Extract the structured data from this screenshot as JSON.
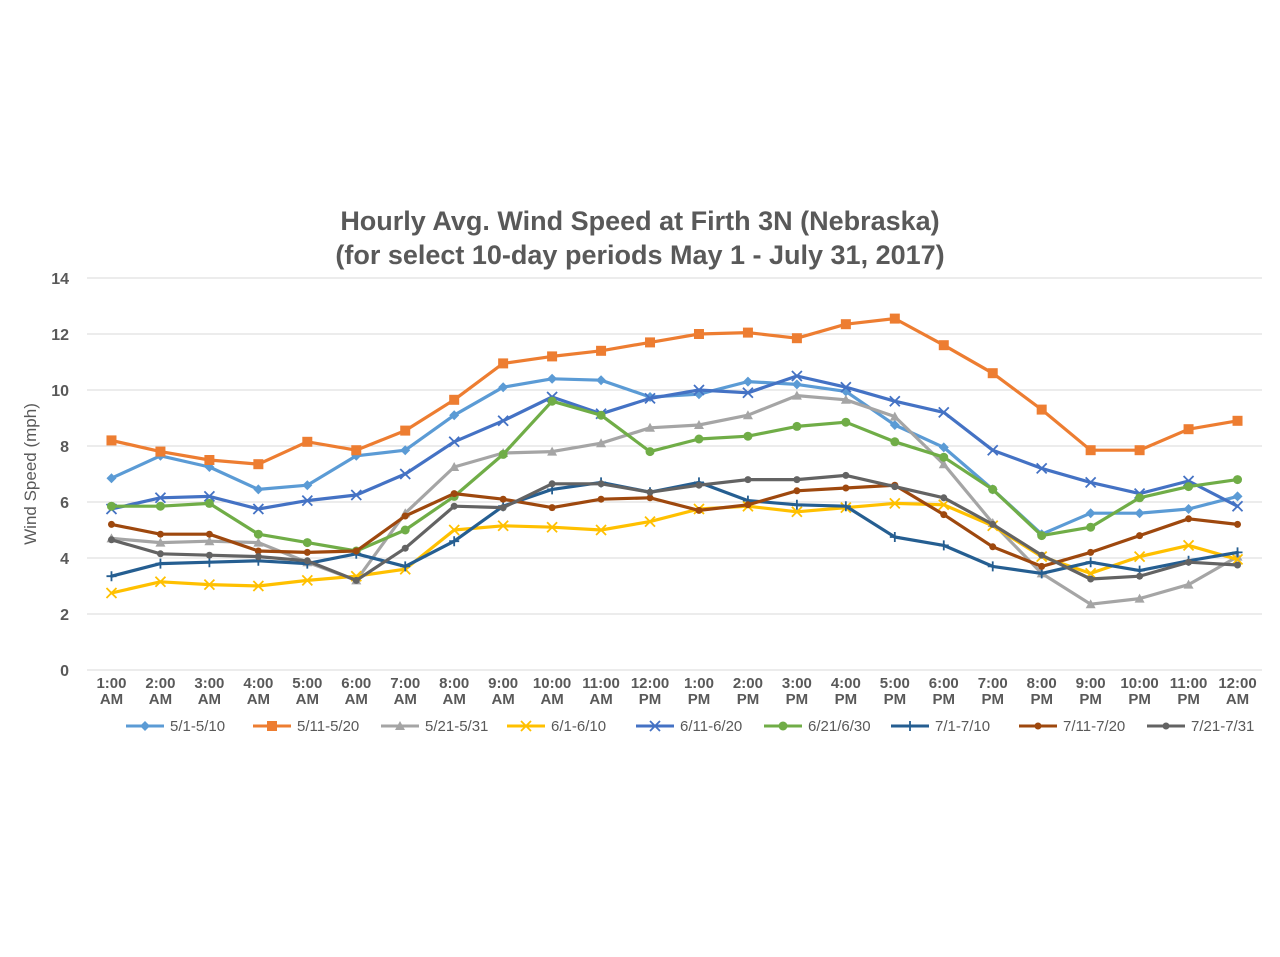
{
  "chart_data": {
    "type": "line",
    "title": [
      "Hourly Avg. Wind Speed at Firth 3N (Nebraska)",
      "(for select 10-day periods May 1 - July 31, 2017)"
    ],
    "xlabel": "",
    "ylabel": "Wind Speed (mph)",
    "ylim": [
      0,
      14
    ],
    "yticks": [
      "0",
      "2",
      "4",
      "6",
      "8",
      "10",
      "12",
      "14"
    ],
    "ytick_values": [
      0,
      2,
      4,
      6,
      8,
      10,
      12,
      14
    ],
    "grid": true,
    "legend_position": "bottom",
    "categories": [
      [
        "1:00",
        "AM"
      ],
      [
        "2:00",
        "AM"
      ],
      [
        "3:00",
        "AM"
      ],
      [
        "4:00",
        "AM"
      ],
      [
        "5:00",
        "AM"
      ],
      [
        "6:00",
        "AM"
      ],
      [
        "7:00",
        "AM"
      ],
      [
        "8:00",
        "AM"
      ],
      [
        "9:00",
        "AM"
      ],
      [
        "10:00",
        "AM"
      ],
      [
        "11:00",
        "AM"
      ],
      [
        "12:00",
        "PM"
      ],
      [
        "1:00",
        "PM"
      ],
      [
        "2:00",
        "PM"
      ],
      [
        "3:00",
        "PM"
      ],
      [
        "4:00",
        "PM"
      ],
      [
        "5:00",
        "PM"
      ],
      [
        "6:00",
        "PM"
      ],
      [
        "7:00",
        "PM"
      ],
      [
        "8:00",
        "PM"
      ],
      [
        "9:00",
        "PM"
      ],
      [
        "10:00",
        "PM"
      ],
      [
        "11:00",
        "PM"
      ],
      [
        "12:00",
        "AM"
      ]
    ],
    "series": [
      {
        "name": "5/1-5/10",
        "color": "#5b9bd5",
        "marker": "diamond",
        "values": [
          6.85,
          7.65,
          7.25,
          6.45,
          6.6,
          7.65,
          7.85,
          9.1,
          10.1,
          10.4,
          10.35,
          9.75,
          9.85,
          10.3,
          10.2,
          9.95,
          8.75,
          7.95,
          6.45,
          4.85,
          5.6,
          5.6,
          5.75,
          6.2
        ]
      },
      {
        "name": "5/11-5/20",
        "color": "#ed7d31",
        "marker": "square",
        "values": [
          8.2,
          7.8,
          7.5,
          7.35,
          8.15,
          7.85,
          8.55,
          9.65,
          10.95,
          11.2,
          11.4,
          11.7,
          12.0,
          12.05,
          11.85,
          12.35,
          12.55,
          11.6,
          10.6,
          9.3,
          7.85,
          7.85,
          8.6,
          8.9
        ]
      },
      {
        "name": "5/21-5/31",
        "color": "#a5a5a5",
        "marker": "triangle",
        "values": [
          4.7,
          4.55,
          4.6,
          4.55,
          3.85,
          3.2,
          5.6,
          7.25,
          7.75,
          7.8,
          8.1,
          8.65,
          8.75,
          9.1,
          9.8,
          9.65,
          9.05,
          7.35,
          5.25,
          3.45,
          2.35,
          2.55,
          3.05,
          4.05
        ]
      },
      {
        "name": "6/1-6/10",
        "color": "#ffc000",
        "marker": "x",
        "values": [
          2.75,
          3.15,
          3.05,
          3.0,
          3.2,
          3.35,
          3.6,
          5.0,
          5.15,
          5.1,
          5.0,
          5.3,
          5.75,
          5.85,
          5.65,
          5.8,
          5.95,
          5.9,
          5.15,
          4.05,
          3.45,
          4.05,
          4.45,
          3.95
        ]
      },
      {
        "name": "6/11-6/20",
        "color": "#4472c4",
        "marker": "x",
        "values": [
          5.75,
          6.15,
          6.2,
          5.75,
          6.05,
          6.25,
          7.0,
          8.15,
          8.9,
          9.75,
          9.15,
          9.7,
          10.0,
          9.9,
          10.5,
          10.1,
          9.6,
          9.2,
          7.85,
          7.2,
          6.7,
          6.3,
          6.75,
          5.85
        ]
      },
      {
        "name": "6/21/6/30",
        "color": "#70ad47",
        "marker": "circle",
        "values": [
          5.85,
          5.85,
          5.95,
          4.85,
          4.55,
          4.25,
          5.0,
          6.2,
          7.7,
          9.6,
          9.1,
          7.8,
          8.25,
          8.35,
          8.7,
          8.85,
          8.15,
          7.6,
          6.45,
          4.8,
          5.1,
          6.15,
          6.55,
          6.8
        ]
      },
      {
        "name": "7/1-7/10",
        "color": "#255e91",
        "marker": "plus",
        "values": [
          3.35,
          3.8,
          3.85,
          3.9,
          3.8,
          4.15,
          3.7,
          4.6,
          5.85,
          6.45,
          6.7,
          6.35,
          6.7,
          6.05,
          5.9,
          5.85,
          4.75,
          4.45,
          3.7,
          3.45,
          3.85,
          3.55,
          3.9,
          4.2
        ]
      },
      {
        "name": "7/11-7/20",
        "color": "#9e480e",
        "marker": "dash",
        "values": [
          5.2,
          4.85,
          4.85,
          4.25,
          4.2,
          4.25,
          5.5,
          6.3,
          6.1,
          5.8,
          6.1,
          6.15,
          5.7,
          5.9,
          6.4,
          6.5,
          6.6,
          5.55,
          4.4,
          3.7,
          4.2,
          4.8,
          5.4,
          5.2
        ]
      },
      {
        "name": "7/21-7/31",
        "color": "#636363",
        "marker": "dash",
        "values": [
          4.65,
          4.15,
          4.1,
          4.05,
          3.9,
          3.2,
          4.35,
          5.85,
          5.8,
          6.65,
          6.65,
          6.35,
          6.6,
          6.8,
          6.8,
          6.95,
          6.55,
          6.15,
          5.2,
          4.1,
          3.25,
          3.35,
          3.85,
          3.75
        ]
      }
    ]
  }
}
